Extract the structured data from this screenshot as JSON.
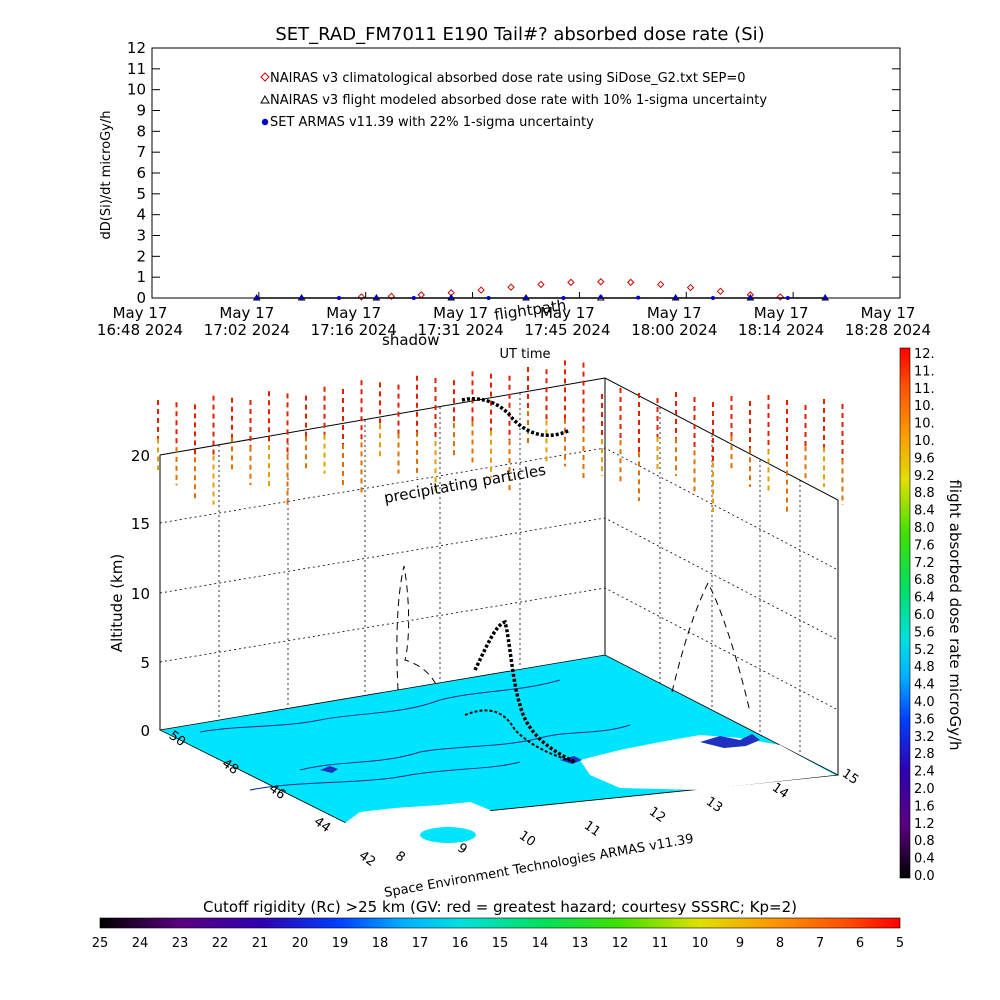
{
  "title": "SET_RAD_FM7011  E190 Tail#? absorbed dose rate (Si)",
  "chart_data": [
    {
      "type": "line",
      "title": "SET_RAD_FM7011  E190 Tail#? absorbed dose rate (Si)",
      "xlabel": "UT time",
      "ylabel": "dD(Si)/dt microGy/h",
      "ylim": [
        0,
        12
      ],
      "yticks": [
        "0",
        "1",
        "2",
        "3",
        "4",
        "5",
        "6",
        "7",
        "8",
        "9",
        "10",
        "11",
        "12"
      ],
      "xticks": [
        {
          "line1": "May 17",
          "line2": "16:48 2024"
        },
        {
          "line1": "May 17",
          "line2": "17:02 2024"
        },
        {
          "line1": "May 17",
          "line2": "17:16 2024"
        },
        {
          "line1": "May 17",
          "line2": "17:31 2024"
        },
        {
          "line1": "May 17",
          "line2": "17:45 2024"
        },
        {
          "line1": "May 17",
          "line2": "18:00 2024"
        },
        {
          "line1": "May 17",
          "line2": "18:14 2024"
        },
        {
          "line1": "May 17",
          "line2": "18:28 2024"
        }
      ],
      "xrange_min": [
        0,
        100
      ],
      "legend": [
        {
          "label": "NAIRAS v3 climatological absorbed dose rate using SiDose_G2.txt SEP=0",
          "color": "#d00000",
          "marker": "diamond"
        },
        {
          "label": "NAIRAS v3 flight modeled absorbed dose rate with 10% 1-sigma uncertainty",
          "color": "#000000",
          "marker": "triangle"
        },
        {
          "label": "SET ARMAS v11.39 with 22% 1-sigma uncertainty",
          "color": "#0000cc",
          "marker": "circle"
        }
      ],
      "series": [
        {
          "name": "NAIRAS v3 climatological absorbed dose rate using SiDose_G2.txt SEP=0",
          "x_min": [
            28,
            32,
            36,
            40,
            44,
            48,
            52,
            56,
            60,
            64,
            68,
            72,
            76,
            80,
            84
          ],
          "values": [
            0.05,
            0.08,
            0.15,
            0.25,
            0.38,
            0.52,
            0.65,
            0.75,
            0.78,
            0.75,
            0.65,
            0.5,
            0.32,
            0.15,
            0.05
          ]
        },
        {
          "name": "NAIRAS v3 flight modeled absorbed dose rate with 10% 1-sigma uncertainty",
          "x_min": [
            14,
            20,
            30,
            40,
            50,
            60,
            70,
            80,
            90
          ],
          "values": [
            0.0,
            0.0,
            0.0,
            0.0,
            0.0,
            0.0,
            0.0,
            0.0,
            0.0
          ]
        },
        {
          "name": "SET ARMAS v11.39 with 22% 1-sigma uncertainty",
          "x_min": [
            14,
            20,
            25,
            30,
            35,
            40,
            45,
            50,
            55,
            60,
            65,
            70,
            75,
            80,
            85,
            90
          ],
          "values": [
            0.0,
            0.0,
            0.0,
            0.0,
            0.0,
            0.0,
            0.0,
            0.0,
            0.0,
            0.05,
            0.02,
            0.0,
            0.0,
            0.0,
            0.0,
            0.0
          ]
        }
      ]
    },
    {
      "type": "scatter",
      "zlabel": "Altitude (km)",
      "zticks": [
        "0",
        "5",
        "10",
        "15",
        "20"
      ],
      "lat_ticks": [
        "42",
        "44",
        "46",
        "48",
        "50"
      ],
      "lon_ticks": [
        "8",
        "9",
        "10",
        "11",
        "12",
        "13",
        "14",
        "15"
      ],
      "labels": {
        "shadow": "shadow",
        "flightpath": "flightpath",
        "precip": "precipitating particles",
        "credit": "Space Environment Technologies ARMAS v11.39"
      },
      "colorbar": {
        "label": "flight absorbed dose rate microGy/h",
        "ticks": [
          "12.",
          "11.",
          "11.",
          "10.",
          "10.",
          "10.",
          "9.6",
          "9.2",
          "8.8",
          "8.4",
          "8.0",
          "7.6",
          "7.2",
          "6.8",
          "6.4",
          "6.0",
          "5.6",
          "5.2",
          "4.8",
          "4.4",
          "4.0",
          "3.6",
          "3.2",
          "2.8",
          "2.4",
          "2.0",
          "1.6",
          "1.2",
          "0.8",
          "0.4",
          "0.0"
        ]
      }
    }
  ],
  "bottom_bar": {
    "label": "Cutoff rigidity (Rc) >25 km (GV: red = greatest hazard; courtesy SSSRC; Kp=2)",
    "ticks": [
      "25",
      "24",
      "23",
      "22",
      "21",
      "20",
      "19",
      "18",
      "17",
      "16",
      "15",
      "14",
      "13",
      "12",
      "11",
      "10",
      "9",
      "8",
      "7",
      "6",
      "5"
    ]
  },
  "colors": {
    "climatological": "#d00000",
    "flight": "#000000",
    "armas": "#0000cc",
    "ground": "#00e5ff",
    "land_white": "#ffffff"
  }
}
